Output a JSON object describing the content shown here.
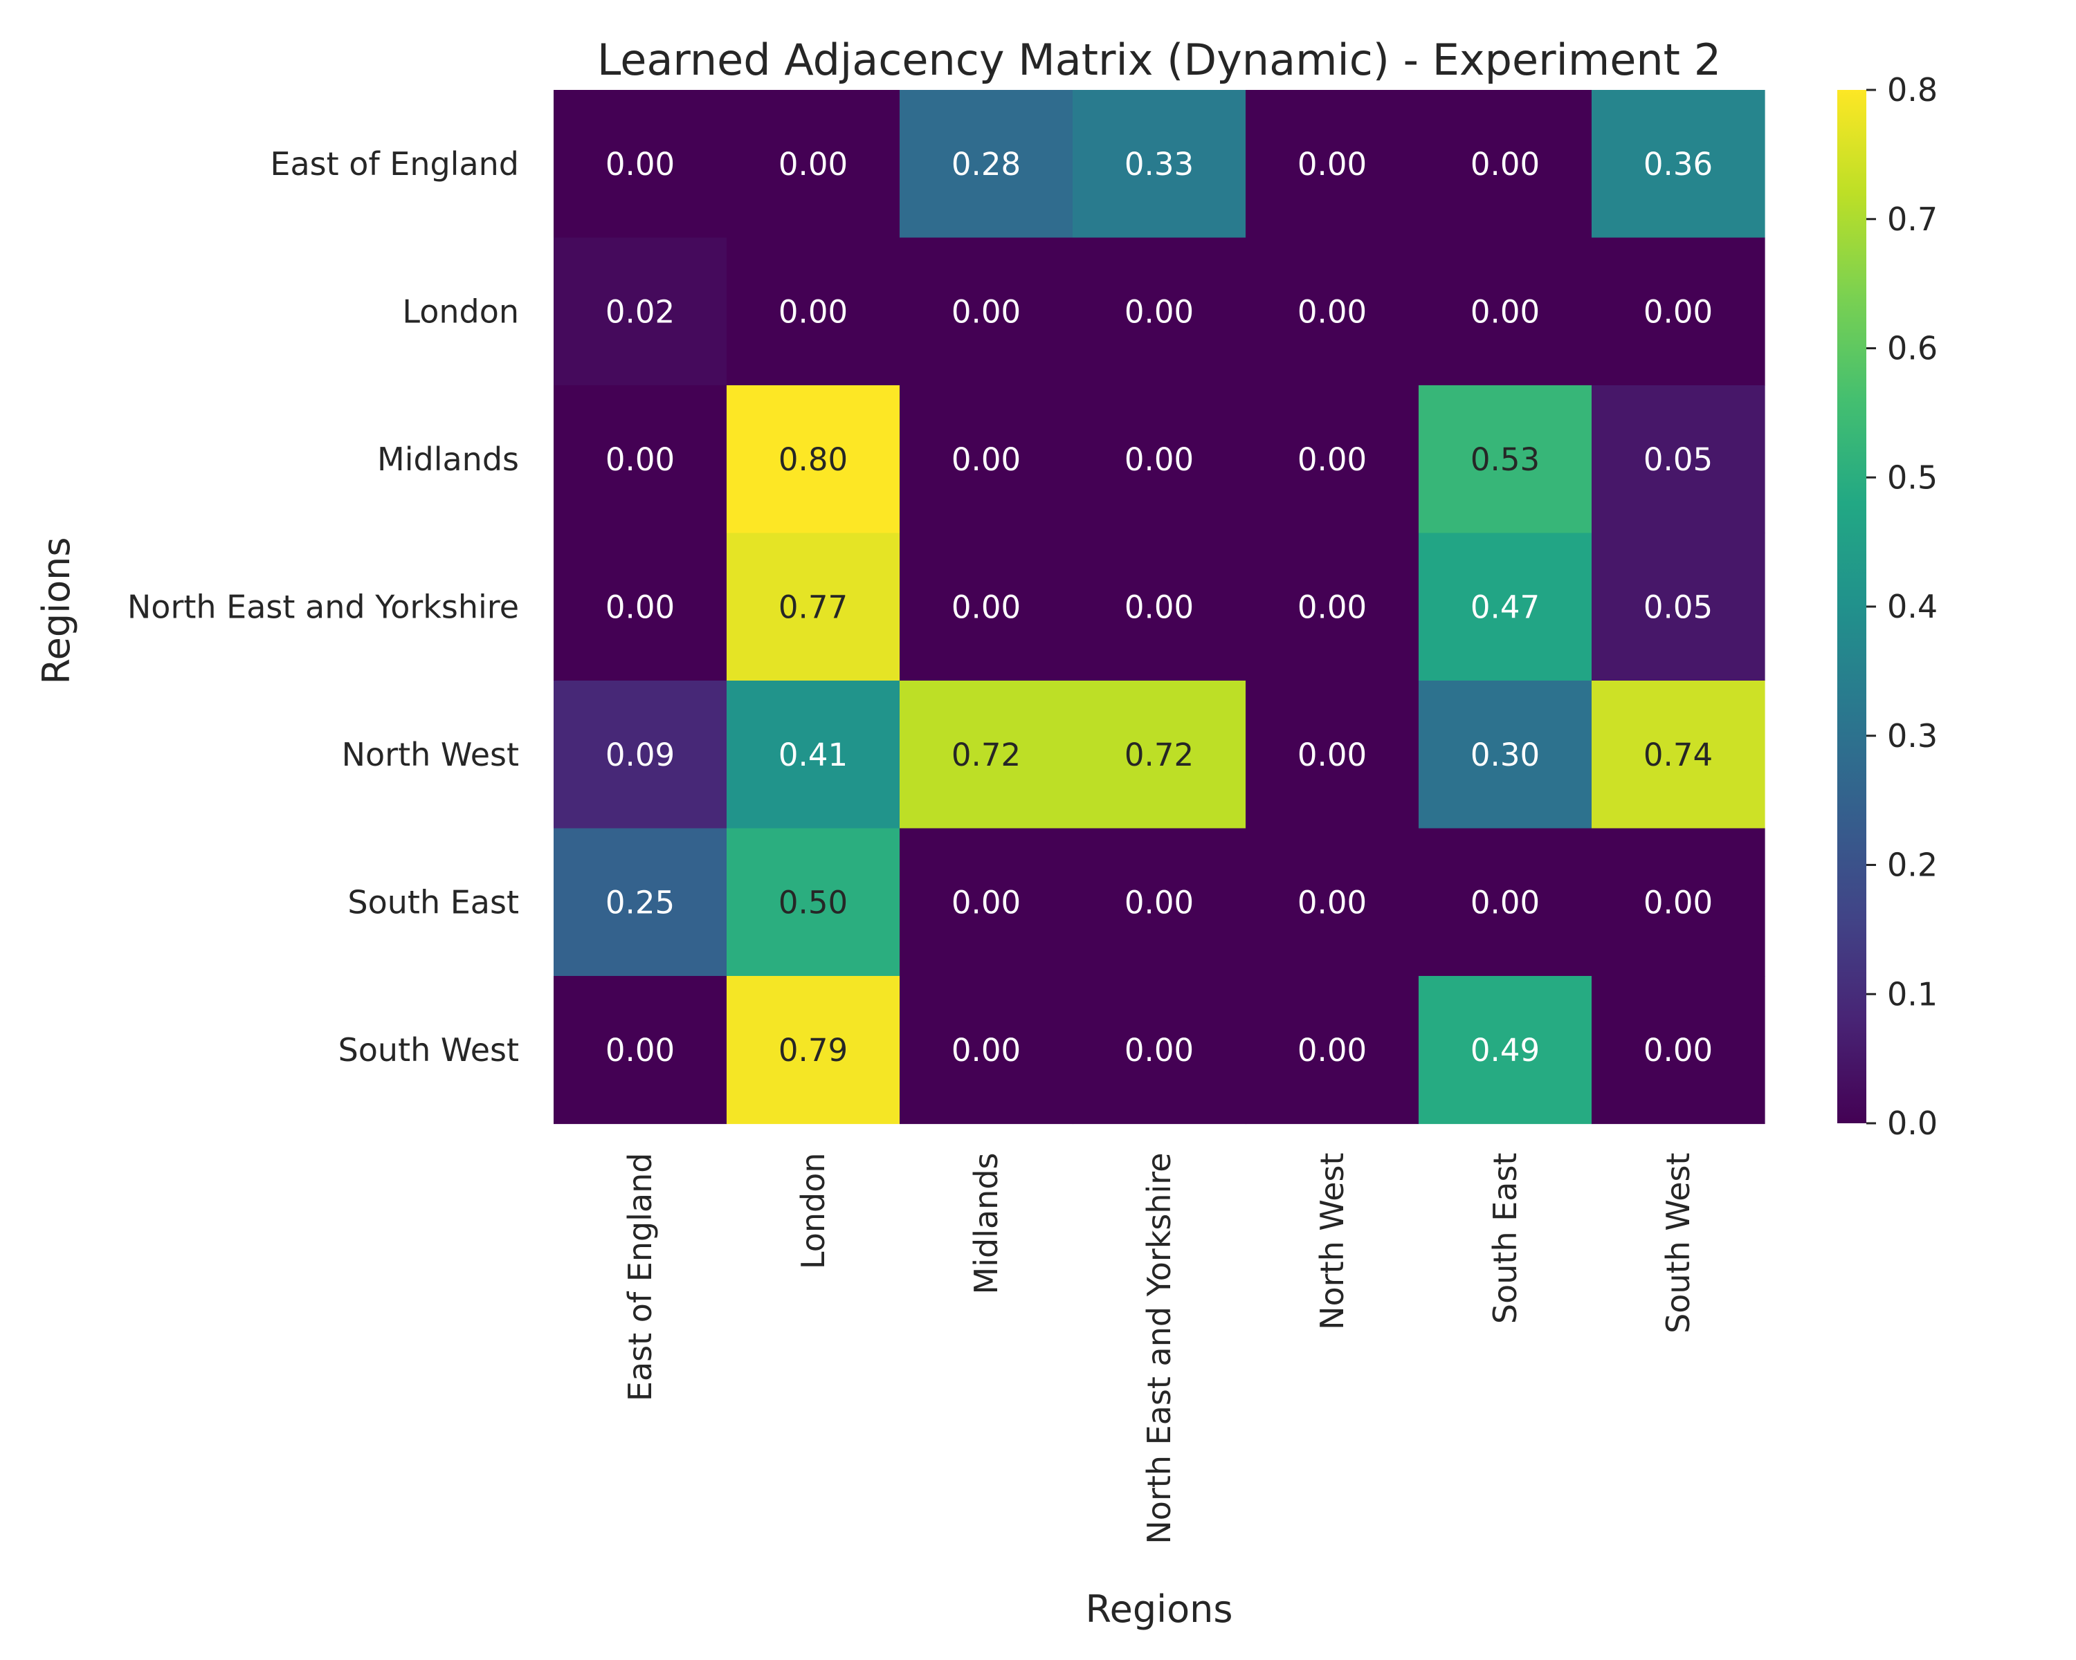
{
  "chart_data": {
    "type": "heatmap",
    "title": "Learned Adjacency Matrix (Dynamic) - Experiment 2",
    "xlabel": "Regions",
    "ylabel": "Regions",
    "rows": [
      "East of England",
      "London",
      "Midlands",
      "North East and Yorkshire",
      "North West",
      "South East",
      "South West"
    ],
    "columns": [
      "East of England",
      "London",
      "Midlands",
      "North East and Yorkshire",
      "North West",
      "South East",
      "South West"
    ],
    "values": [
      [
        0.0,
        0.0,
        0.28,
        0.33,
        0.0,
        0.0,
        0.36
      ],
      [
        0.02,
        0.0,
        0.0,
        0.0,
        0.0,
        0.0,
        0.0
      ],
      [
        0.0,
        0.8,
        0.0,
        0.0,
        0.0,
        0.53,
        0.05
      ],
      [
        0.0,
        0.77,
        0.0,
        0.0,
        0.0,
        0.47,
        0.05
      ],
      [
        0.09,
        0.41,
        0.72,
        0.72,
        0.0,
        0.3,
        0.74
      ],
      [
        0.25,
        0.5,
        0.0,
        0.0,
        0.0,
        0.0,
        0.0
      ],
      [
        0.0,
        0.79,
        0.0,
        0.0,
        0.0,
        0.49,
        0.0
      ]
    ],
    "value_labels_format": "0.00",
    "colormap": "viridis",
    "colorbar": {
      "range": [
        0.0,
        0.8
      ],
      "ticks": [
        "0.0",
        "0.1",
        "0.2",
        "0.3",
        "0.4",
        "0.5",
        "0.6",
        "0.7",
        "0.8"
      ]
    },
    "grid": false
  }
}
